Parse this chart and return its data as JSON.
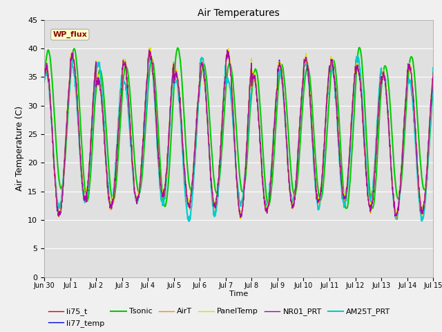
{
  "title": "Air Temperatures",
  "xlabel": "Time",
  "ylabel": "Air Temperature (C)",
  "ylim": [
    0,
    45
  ],
  "yticks": [
    0,
    5,
    10,
    15,
    20,
    25,
    30,
    35,
    40,
    45
  ],
  "figure_bg": "#f0f0f0",
  "axes_bg": "#e0e0e0",
  "annotation_text": "WP_flux",
  "annotation_color": "#880000",
  "annotation_bg": "#ffffcc",
  "annotation_edge": "#aaaaaa",
  "series": [
    {
      "label": "li75_t",
      "color": "#dd0000",
      "lw": 1.0
    },
    {
      "label": "li77_temp",
      "color": "#0000dd",
      "lw": 1.0
    },
    {
      "label": "Tsonic",
      "color": "#00cc00",
      "lw": 1.5
    },
    {
      "label": "AirT",
      "color": "#ff8800",
      "lw": 1.0
    },
    {
      "label": "PanelTemp",
      "color": "#dddd00",
      "lw": 1.0
    },
    {
      "label": "NR01_PRT",
      "color": "#aa00aa",
      "lw": 1.0
    },
    {
      "label": "AM25T_PRT",
      "color": "#00cccc",
      "lw": 1.5
    }
  ],
  "date_labels": [
    "Jun 30",
    "Jul 1",
    "Jul 2",
    "Jul 3",
    "Jul 4",
    "Jul 5",
    "Jul 6",
    "Jul 7",
    "Jul 8",
    "Jul 9",
    "Jul 10",
    "Jul 11",
    "Jul 12",
    "Jul 13",
    "Jul 14",
    "Jul 15"
  ],
  "n_days": 16,
  "pts_per_day": 96,
  "seed": 7
}
